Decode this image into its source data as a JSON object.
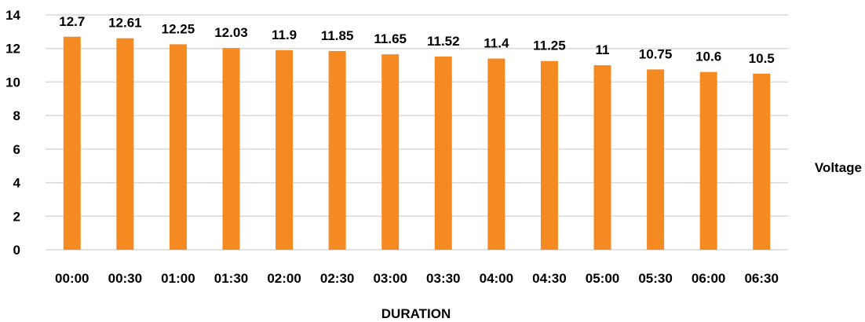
{
  "chart_data": {
    "type": "bar",
    "categories": [
      "00:00",
      "00:30",
      "01:00",
      "01:30",
      "02:00",
      "02:30",
      "03:00",
      "03:30",
      "04:00",
      "04:30",
      "05:00",
      "05:30",
      "06:00",
      "06:30"
    ],
    "series": [
      {
        "name": "Voltage",
        "values": [
          12.7,
          12.61,
          12.25,
          12.03,
          11.9,
          11.85,
          11.65,
          11.52,
          11.4,
          11.25,
          11,
          10.75,
          10.6,
          10.5
        ],
        "labels": [
          "12.7",
          "12.61",
          "12.25",
          "12.03",
          "11.9",
          "11.85",
          "11.65",
          "11.52",
          "11.4",
          "11.25",
          "11",
          "10.75",
          "10.6",
          "10.5"
        ]
      }
    ],
    "title": "",
    "xlabel": "DURATION",
    "ylabel": "",
    "ylim": [
      0,
      14
    ],
    "yticks": [
      "0",
      "2",
      "4",
      "6",
      "8",
      "10",
      "12",
      "14"
    ],
    "grid": true,
    "legend_position": "right",
    "colors": {
      "bar": "#F58A22",
      "grid": "#D9D9D9"
    }
  }
}
